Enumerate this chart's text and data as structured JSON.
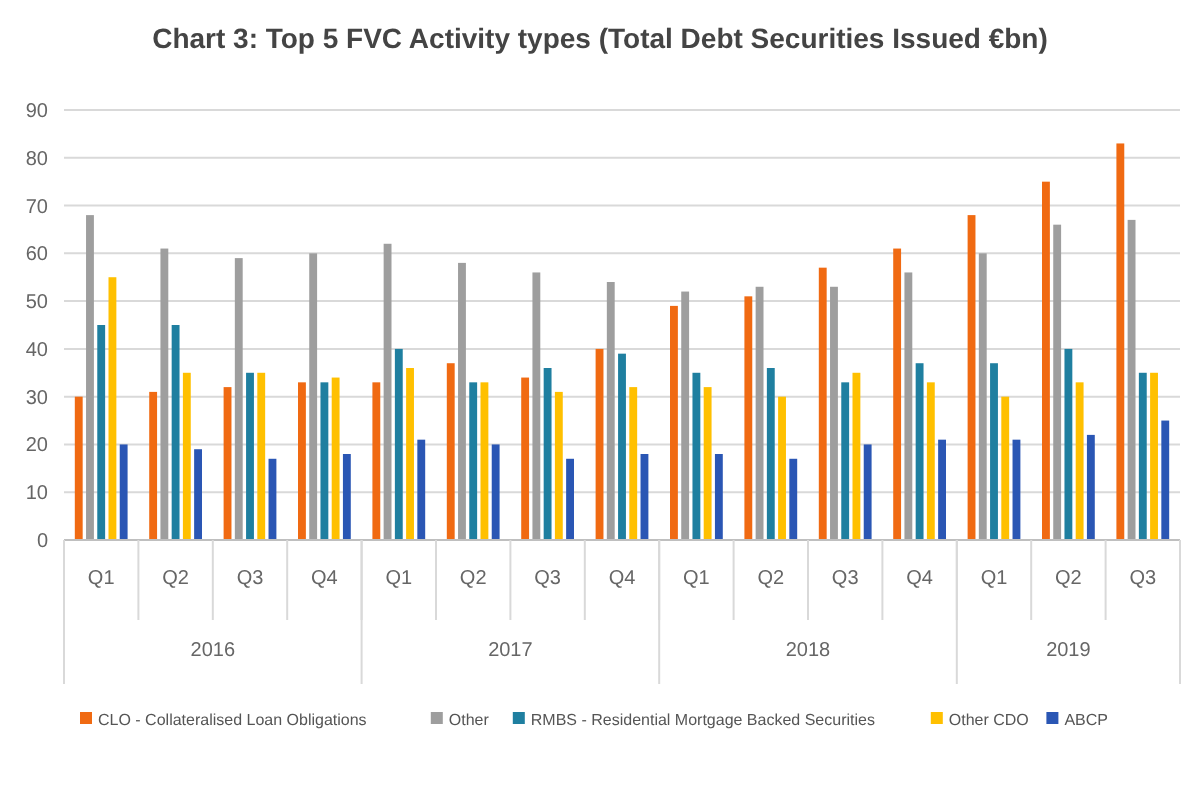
{
  "chart_data": {
    "type": "bar",
    "title": "Chart 3: Top 5 FVC Activity types (Total Debt Securities Issued €bn)",
    "categories": [
      "Q1",
      "Q2",
      "Q3",
      "Q4",
      "Q1",
      "Q2",
      "Q3",
      "Q4",
      "Q1",
      "Q2",
      "Q3",
      "Q4",
      "Q1",
      "Q2",
      "Q3"
    ],
    "annotations": [
      "2016",
      "2017",
      "2018",
      "2019"
    ],
    "series": [
      {
        "name": "CLO - Collateralised Loan Obligations",
        "color": "#f06a12",
        "values": [
          30,
          31,
          32,
          33,
          33,
          37,
          34,
          40,
          49,
          51,
          57,
          61,
          68,
          75,
          83
        ]
      },
      {
        "name": "Other",
        "color": "#9e9e9e",
        "values": [
          68,
          61,
          59,
          60,
          62,
          58,
          56,
          54,
          52,
          53,
          53,
          56,
          60,
          66,
          67
        ]
      },
      {
        "name": "RMBS - Residential Mortgage Backed Securities",
        "color": "#1f7fa0",
        "values": [
          45,
          45,
          35,
          33,
          40,
          33,
          36,
          39,
          35,
          36,
          33,
          37,
          37,
          40,
          35
        ]
      },
      {
        "name": "Other CDO",
        "color": "#ffc000",
        "values": [
          55,
          35,
          35,
          34,
          36,
          33,
          31,
          32,
          32,
          30,
          35,
          33,
          30,
          33,
          35
        ]
      },
      {
        "name": "ABCP",
        "color": "#2a56b4",
        "values": [
          20,
          19,
          17,
          18,
          21,
          20,
          17,
          18,
          18,
          17,
          20,
          21,
          21,
          22,
          25
        ]
      }
    ],
    "ylim": [
      0,
      90
    ],
    "yticks": [
      0,
      10,
      20,
      30,
      40,
      50,
      60,
      70,
      80,
      90
    ],
    "grid": "y",
    "legend": "bottom"
  }
}
